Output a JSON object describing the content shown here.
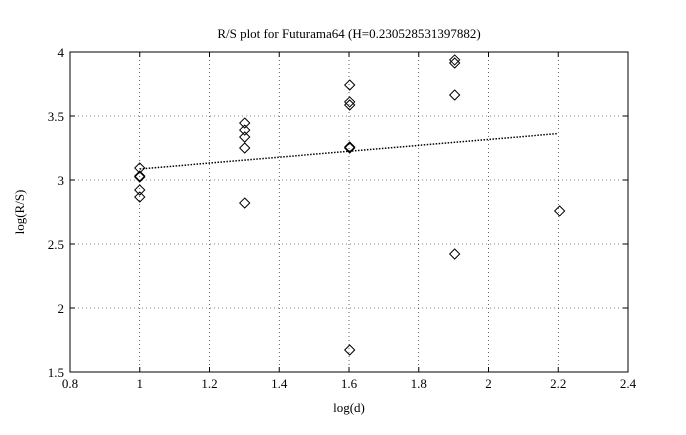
{
  "chart_data": {
    "type": "scatter",
    "title": "R/S plot for Futurama64 (H=0.230528531397882)",
    "xlabel": "log(d)",
    "ylabel": "log(R/S)",
    "xlim": [
      0.8,
      2.4
    ],
    "ylim": [
      1.5,
      4
    ],
    "xticks": [
      0.8,
      1,
      1.2,
      1.4,
      1.6,
      1.8,
      2,
      2.2,
      2.4
    ],
    "yticks": [
      1.5,
      2,
      2.5,
      3,
      3.5,
      4
    ],
    "grid": true,
    "series": [
      {
        "type": "scatter",
        "marker": "diamond",
        "color": "#000000",
        "x": [
          1,
          1,
          1,
          1,
          1,
          1.301,
          1.301,
          1.301,
          1.301,
          1.301,
          1.602,
          1.602,
          1.602,
          1.602,
          1.602,
          1.602,
          1.903,
          1.903,
          1.903,
          1.903,
          2.204
        ],
        "values": [
          3.094,
          3.031,
          3.023,
          2.922,
          2.867,
          3.445,
          3.39,
          3.336,
          3.25,
          2.82,
          3.742,
          3.61,
          3.586,
          3.258,
          3.25,
          1.672,
          3.938,
          3.914,
          3.664,
          2.422,
          2.758
        ]
      },
      {
        "type": "line",
        "line_style": "dotted",
        "color": "#000000",
        "x": [
          1,
          2.2
        ],
        "values": [
          3.086,
          3.363
        ]
      }
    ]
  }
}
